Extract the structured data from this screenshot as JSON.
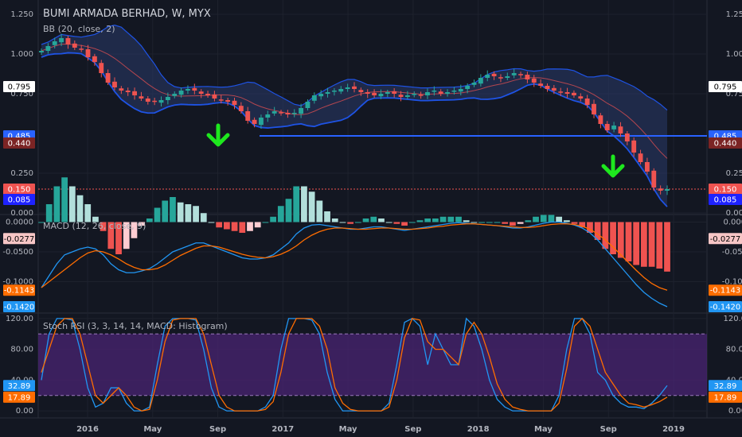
{
  "header": {
    "title": "BUMI ARMADA BERHAD, W, MYX",
    "bb_label": "BB (20, close, 2)",
    "macd_label": "MACD (12, 26, close, 9)",
    "stoch_label": "Stoch RSI (3, 3, 14, 14, MACD: Histogram)"
  },
  "colors": {
    "background": "#131722",
    "up_candle": "#26a69a",
    "down_candle": "#ef5350",
    "bb_band": "#1e53e5",
    "bb_fill": "#2a3b6a",
    "bb_basis": "#b3464f",
    "support_line": "#2962ff",
    "arrow": "#1ee81e",
    "macd_line": "#2196f3",
    "signal_line": "#ff6d00",
    "stoch_fill": "#4a2473",
    "stoch_k": "#2196f3",
    "stoch_d": "#ff6d00"
  },
  "chart_data": [
    {
      "type": "candlestick",
      "title": "BUMI ARMADA BERHAD, W, MYX",
      "x_ticks": [
        "2016",
        "May",
        "Sep",
        "2017",
        "May",
        "Sep",
        "2018",
        "May",
        "Sep",
        "2019"
      ],
      "y_ticks": [
        "1.250",
        "1.000",
        "0.750",
        "0.250",
        "0.000"
      ],
      "ylim": [
        0.0,
        1.3
      ],
      "price_badges": [
        {
          "value": "0.795",
          "bg": "#ffffff",
          "fg": "#000000"
        },
        {
          "value": "0.485",
          "bg": "#2962ff",
          "fg": "#ffffff"
        },
        {
          "value": "0.440",
          "bg": "#7b2424",
          "fg": "#ffffff"
        },
        {
          "value": "0.150",
          "bg": "#ef5350",
          "fg": "#ffffff"
        },
        {
          "value": "0.085",
          "bg": "#1e22ff",
          "fg": "#ffffff"
        }
      ],
      "support_level": 0.485,
      "last_close": 0.15,
      "close_series": [
        1.02,
        1.05,
        1.08,
        1.1,
        1.06,
        1.04,
        1.03,
        0.98,
        0.95,
        0.88,
        0.82,
        0.79,
        0.77,
        0.76,
        0.74,
        0.72,
        0.7,
        0.7,
        0.71,
        0.73,
        0.75,
        0.77,
        0.78,
        0.77,
        0.75,
        0.74,
        0.72,
        0.71,
        0.7,
        0.68,
        0.64,
        0.58,
        0.56,
        0.6,
        0.62,
        0.64,
        0.63,
        0.62,
        0.63,
        0.66,
        0.7,
        0.74,
        0.75,
        0.76,
        0.77,
        0.78,
        0.79,
        0.78,
        0.76,
        0.75,
        0.74,
        0.75,
        0.76,
        0.75,
        0.73,
        0.74,
        0.75,
        0.74,
        0.76,
        0.77,
        0.75,
        0.76,
        0.77,
        0.78,
        0.8,
        0.82,
        0.85,
        0.87,
        0.86,
        0.85,
        0.86,
        0.88,
        0.87,
        0.84,
        0.82,
        0.8,
        0.78,
        0.77,
        0.76,
        0.75,
        0.74,
        0.72,
        0.68,
        0.62,
        0.56,
        0.52,
        0.55,
        0.5,
        0.45,
        0.38,
        0.32,
        0.26,
        0.16,
        0.14,
        0.15
      ]
    },
    {
      "type": "line",
      "title": "MACD (12, 26, close, 9)",
      "y_ticks": [
        "0.0000",
        "-0.0500",
        "-0.1000"
      ],
      "ylim": [
        -0.15,
        0.01
      ],
      "price_badges": [
        {
          "value": "-0.0277",
          "bg": "#f7c6c6",
          "fg": "#000000"
        },
        {
          "value": "-0.1143",
          "bg": "#ff6d00",
          "fg": "#ffffff"
        },
        {
          "value": "-0.1420",
          "bg": "#2196f3",
          "fg": "#ffffff"
        }
      ],
      "series": [
        {
          "name": "MACD",
          "values": [
            -0.11,
            -0.09,
            -0.07,
            -0.055,
            -0.05,
            -0.045,
            -0.042,
            -0.045,
            -0.055,
            -0.07,
            -0.08,
            -0.085,
            -0.085,
            -0.082,
            -0.078,
            -0.07,
            -0.06,
            -0.05,
            -0.045,
            -0.04,
            -0.035,
            -0.035,
            -0.04,
            -0.045,
            -0.05,
            -0.055,
            -0.06,
            -0.062,
            -0.062,
            -0.06,
            -0.055,
            -0.045,
            -0.035,
            -0.02,
            -0.01,
            -0.005,
            -0.004,
            -0.006,
            -0.008,
            -0.01,
            -0.012,
            -0.012,
            -0.01,
            -0.008,
            -0.008,
            -0.01,
            -0.012,
            -0.014,
            -0.012,
            -0.01,
            -0.008,
            -0.006,
            -0.004,
            -0.002,
            -0.001,
            -0.002,
            -0.003,
            -0.004,
            -0.005,
            -0.006,
            -0.008,
            -0.01,
            -0.01,
            -0.008,
            -0.005,
            -0.002,
            0.0,
            0.0,
            -0.002,
            -0.005,
            -0.01,
            -0.018,
            -0.03,
            -0.045,
            -0.06,
            -0.075,
            -0.09,
            -0.105,
            -0.118,
            -0.128,
            -0.136,
            -0.142
          ]
        },
        {
          "name": "Signal",
          "values": [
            -0.11,
            -0.1,
            -0.09,
            -0.08,
            -0.07,
            -0.06,
            -0.052,
            -0.048,
            -0.05,
            -0.055,
            -0.062,
            -0.07,
            -0.076,
            -0.08,
            -0.08,
            -0.078,
            -0.072,
            -0.064,
            -0.056,
            -0.05,
            -0.044,
            -0.04,
            -0.04,
            -0.042,
            -0.046,
            -0.05,
            -0.054,
            -0.057,
            -0.059,
            -0.06,
            -0.058,
            -0.054,
            -0.048,
            -0.04,
            -0.03,
            -0.022,
            -0.016,
            -0.012,
            -0.01,
            -0.01,
            -0.011,
            -0.012,
            -0.012,
            -0.011,
            -0.01,
            -0.01,
            -0.011,
            -0.012,
            -0.012,
            -0.011,
            -0.01,
            -0.008,
            -0.007,
            -0.005,
            -0.004,
            -0.003,
            -0.003,
            -0.004,
            -0.005,
            -0.006,
            -0.007,
            -0.008,
            -0.009,
            -0.009,
            -0.008,
            -0.006,
            -0.004,
            -0.003,
            -0.003,
            -0.004,
            -0.007,
            -0.012,
            -0.02,
            -0.03,
            -0.042,
            -0.055,
            -0.068,
            -0.081,
            -0.093,
            -0.103,
            -0.11,
            -0.1143
          ]
        }
      ]
    },
    {
      "type": "line",
      "title": "Stoch RSI (3, 3, 14, 14, MACD: Histogram)",
      "y_ticks": [
        "120.00",
        "80.00",
        "40.00",
        "0.00"
      ],
      "ylim": [
        -5,
        125
      ],
      "bands": [
        20,
        100
      ],
      "price_badges": [
        {
          "value": "32.89",
          "bg": "#2196f3",
          "fg": "#ffffff"
        },
        {
          "value": "17.89",
          "bg": "#ff6d00",
          "fg": "#ffffff"
        }
      ],
      "series": [
        {
          "name": "K",
          "values": [
            40,
            100,
            120,
            120,
            118,
            80,
            30,
            5,
            10,
            30,
            30,
            10,
            0,
            0,
            5,
            60,
            110,
            120,
            120,
            120,
            118,
            80,
            30,
            5,
            0,
            0,
            0,
            0,
            0,
            5,
            20,
            80,
            120,
            120,
            120,
            118,
            100,
            50,
            15,
            0,
            0,
            0,
            0,
            0,
            0,
            10,
            60,
            115,
            120,
            110,
            60,
            100,
            80,
            60,
            60,
            120,
            110,
            80,
            40,
            15,
            5,
            0,
            0,
            0,
            0,
            0,
            0,
            20,
            80,
            120,
            120,
            100,
            50,
            40,
            20,
            10,
            5,
            5,
            3,
            10,
            20,
            32.89
          ]
        },
        {
          "name": "D",
          "values": [
            50,
            80,
            110,
            120,
            120,
            100,
            60,
            20,
            10,
            20,
            30,
            20,
            5,
            0,
            2,
            40,
            90,
            118,
            120,
            120,
            120,
            100,
            60,
            20,
            5,
            0,
            0,
            0,
            0,
            2,
            12,
            50,
            100,
            120,
            120,
            120,
            110,
            80,
            30,
            10,
            2,
            0,
            0,
            0,
            0,
            5,
            40,
            95,
            120,
            118,
            90,
            80,
            80,
            70,
            60,
            100,
            115,
            100,
            70,
            35,
            15,
            5,
            2,
            0,
            0,
            0,
            0,
            10,
            55,
            110,
            120,
            110,
            80,
            50,
            35,
            20,
            10,
            8,
            5,
            8,
            12,
            17.89
          ]
        }
      ]
    }
  ]
}
